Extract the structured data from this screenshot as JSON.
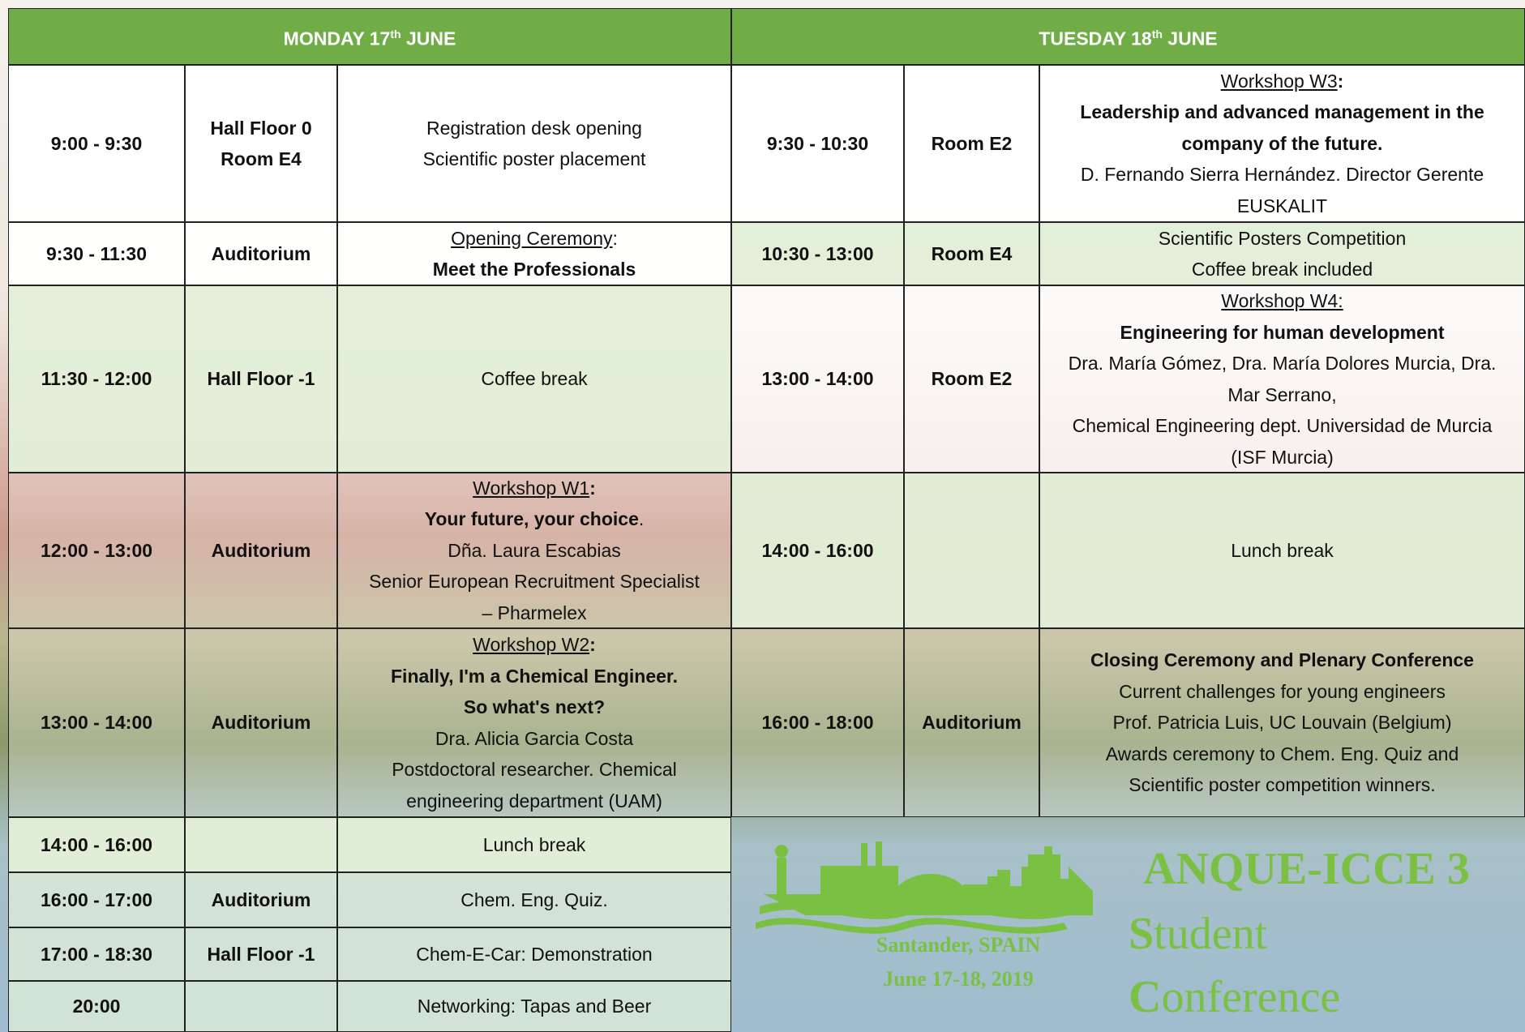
{
  "monday": {
    "header": {
      "day": "MONDAY 17",
      "sup": "th",
      "month": "JUNE"
    },
    "rows": [
      {
        "time": "9:00 - 9:30",
        "place": [
          "Hall Floor 0",
          "Room E4"
        ],
        "lines": [
          [
            "Registration desk opening"
          ],
          [
            "Scientific poster placement"
          ]
        ]
      },
      {
        "time": "9:30 - 11:30",
        "place": [
          "Auditorium"
        ],
        "lines": [
          [
            "Opening Ceremony",
            ":"
          ],
          [
            "Meet the Professionals"
          ]
        ]
      },
      {
        "time": "11:30 - 12:00",
        "place": [
          "Hall Floor -1"
        ],
        "lines": [
          [
            "Coffee break"
          ]
        ]
      },
      {
        "time": "12:00 - 13:00",
        "place": [
          "Auditorium"
        ],
        "lines": [
          [
            "Workshop W1",
            ":"
          ],
          [
            "Your future, your choice",
            "."
          ],
          [
            "Dña. Laura Escabias"
          ],
          [
            "Senior European Recruitment Specialist"
          ],
          [
            "– Pharmelex"
          ]
        ]
      },
      {
        "time": "13:00 - 14:00",
        "place": [
          "Auditorium"
        ],
        "lines": [
          [
            "Workshop W2",
            ":"
          ],
          [
            "Finally, I'm a Chemical Engineer."
          ],
          [
            "So what's next?"
          ],
          [
            "Dra. Alicia Garcia Costa"
          ],
          [
            "Postdoctoral researcher. Chemical"
          ],
          [
            "engineering department (UAM)"
          ]
        ]
      },
      {
        "time": "14:00 - 16:00",
        "place": [],
        "lines": [
          [
            "Lunch break"
          ]
        ]
      },
      {
        "time": "16:00 - 17:00",
        "place": [
          "Auditorium"
        ],
        "lines": [
          [
            "Chem. Eng. Quiz."
          ]
        ]
      },
      {
        "time": "17:00 - 18:30",
        "place": [
          "Hall Floor -1"
        ],
        "lines": [
          [
            "Chem-E-Car: Demonstration"
          ]
        ]
      },
      {
        "time": "20:00",
        "place": [],
        "lines": [
          [
            "Networking: Tapas and Beer"
          ]
        ]
      }
    ]
  },
  "tuesday": {
    "header": {
      "day": "TUESDAY 18",
      "sup": "th",
      "month": "JUNE"
    },
    "rows": [
      {
        "time": "9:30 - 10:30",
        "place": [
          "Room E2"
        ],
        "lines": [
          [
            "Workshop W3",
            ":"
          ],
          [
            "Leadership and advanced management in the"
          ],
          [
            "company of the future."
          ],
          [
            "D. Fernando Sierra Hernández.  Director Gerente"
          ],
          [
            "EUSKALIT"
          ]
        ]
      },
      {
        "time": "10:30 - 13:00",
        "place": [
          "Room E4"
        ],
        "lines": [
          [
            "Scientific Posters Competition"
          ],
          [
            "Coffee break included"
          ]
        ]
      },
      {
        "time": "13:00 - 14:00",
        "place": [
          "Room E2"
        ],
        "lines": [
          [
            "Workshop W4:"
          ],
          [
            "Engineering for human development"
          ],
          [
            "Dra. María Gómez, Dra. María Dolores Murcia, Dra."
          ],
          [
            "Mar Serrano,"
          ],
          [
            "Chemical Engineering dept. Universidad de Murcia"
          ],
          [
            "(ISF Murcia)"
          ]
        ]
      },
      {
        "time": "14:00 - 16:00",
        "place": [],
        "lines": [
          [
            "Lunch break"
          ]
        ]
      },
      {
        "time": "16:00 - 18:00",
        "place": [
          "Auditorium"
        ],
        "lines": [
          [
            "Closing Ceremony and Plenary Conference"
          ],
          [
            "Current challenges for young engineers"
          ],
          [
            "Prof. Patricia Luis, UC Louvain (Belgium)"
          ],
          [
            "Awards ceremony to Chem. Eng. Quiz and"
          ],
          [
            "Scientific poster competition winners."
          ]
        ]
      }
    ]
  },
  "logo": {
    "title": "ANQUE-ICCE 3",
    "line2": [
      "S",
      "tudent"
    ],
    "line3": [
      "C",
      "onference"
    ],
    "location": "Santander, SPAIN",
    "dates": "June 17-18, 2019"
  }
}
